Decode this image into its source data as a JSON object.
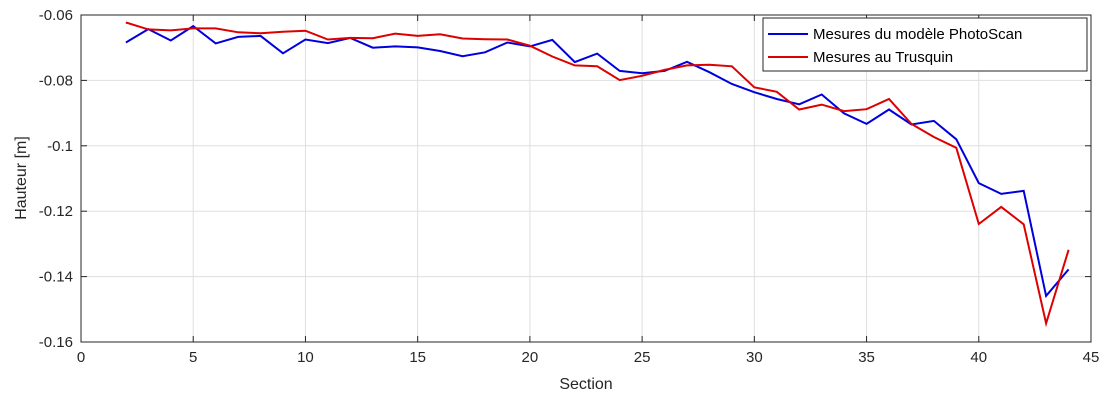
{
  "chart_data": {
    "type": "line",
    "title": "",
    "xlabel": "Section",
    "ylabel": "Hauteur [m]",
    "xlim": [
      0,
      45
    ],
    "ylim": [
      -0.16,
      -0.06
    ],
    "xticks": [
      0,
      5,
      10,
      15,
      20,
      25,
      30,
      35,
      40,
      45
    ],
    "xtick_labels": [
      "0",
      "5",
      "10",
      "15",
      "20",
      "25",
      "30",
      "35",
      "40",
      "45"
    ],
    "yticks": [
      -0.16,
      -0.14,
      -0.12,
      -0.1,
      -0.08,
      -0.06
    ],
    "ytick_labels": [
      "-0.16",
      "-0.14",
      "-0.12",
      "-0.1",
      "-0.08",
      "-0.06"
    ],
    "grid": true,
    "legend_position": "top-right",
    "x": [
      2,
      3,
      4,
      5,
      6,
      7,
      8,
      9,
      10,
      11,
      12,
      13,
      14,
      15,
      16,
      17,
      18,
      19,
      20,
      21,
      22,
      23,
      24,
      25,
      26,
      27,
      28,
      29,
      30,
      31,
      32,
      33,
      34,
      35,
      36,
      37,
      38,
      39,
      40,
      41,
      42,
      43,
      44
    ],
    "series": [
      {
        "name": "Mesures du modèle PhotoScan",
        "color": "#0000dd",
        "values": [
          -0.0684,
          -0.0643,
          -0.0678,
          -0.0634,
          -0.0687,
          -0.0667,
          -0.0664,
          -0.0717,
          -0.0675,
          -0.0686,
          -0.067,
          -0.07,
          -0.0696,
          -0.0699,
          -0.071,
          -0.0726,
          -0.0714,
          -0.0684,
          -0.0696,
          -0.0676,
          -0.0744,
          -0.0718,
          -0.0771,
          -0.0778,
          -0.0771,
          -0.0743,
          -0.0775,
          -0.0811,
          -0.0836,
          -0.0857,
          -0.0873,
          -0.0843,
          -0.0901,
          -0.0933,
          -0.0889,
          -0.0935,
          -0.0924,
          -0.098,
          -0.1114,
          -0.1147,
          -0.1138,
          -0.1459,
          -0.1378
        ]
      },
      {
        "name": "Mesures au Trusquin",
        "color": "#dd0000",
        "values": [
          -0.0623,
          -0.0644,
          -0.0647,
          -0.0641,
          -0.0641,
          -0.0653,
          -0.0656,
          -0.0651,
          -0.0648,
          -0.0675,
          -0.067,
          -0.0671,
          -0.0657,
          -0.0664,
          -0.0659,
          -0.0672,
          -0.0674,
          -0.0675,
          -0.0694,
          -0.0727,
          -0.0754,
          -0.0757,
          -0.0799,
          -0.0786,
          -0.0768,
          -0.0754,
          -0.0752,
          -0.0757,
          -0.0821,
          -0.0835,
          -0.0889,
          -0.0874,
          -0.0894,
          -0.0888,
          -0.0857,
          -0.0933,
          -0.0973,
          -0.1006,
          -0.1239,
          -0.1187,
          -0.124,
          -0.1543,
          -0.1318
        ]
      }
    ]
  }
}
